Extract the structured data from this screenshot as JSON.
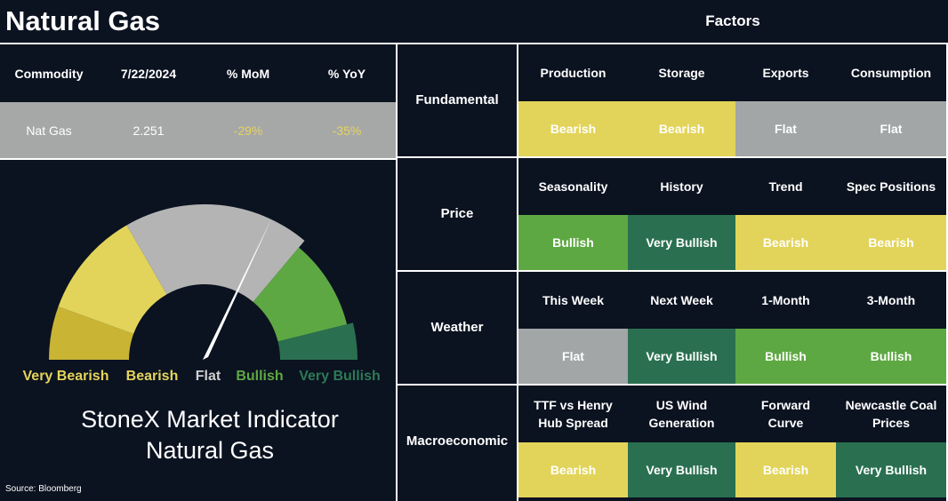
{
  "header": {
    "title": "Natural Gas",
    "factors_title": "Factors"
  },
  "table": {
    "columns": [
      "Commodity",
      "7/22/2024",
      "% MoM",
      "% YoY"
    ],
    "row": [
      "Nat Gas",
      "2.251",
      "-29%",
      "-35%"
    ],
    "row_colors": [
      "#ffffff",
      "#ffffff",
      "#e6d35a",
      "#e6d35a"
    ]
  },
  "gauge": {
    "labels": [
      {
        "text": "Very Bearish",
        "color": "#c9b434",
        "label_color": "#e5d45a"
      },
      {
        "text": "Bearish",
        "color": "#e2d45a",
        "label_color": "#e5d45a"
      },
      {
        "text": "Flat",
        "color": "#b4b4b4",
        "label_color": "#cfcfcf"
      },
      {
        "text": "Bullish",
        "color": "#5ea843",
        "label_color": "#5ea843"
      },
      {
        "text": "Very Bullish",
        "color": "#2a7050",
        "label_color": "#2d7a55"
      }
    ],
    "title_line1": "StoneX Market Indicator",
    "title_line2": "Natural Gas"
  },
  "source": "Source: Bloomberg",
  "sections": [
    {
      "name": "Fundamental",
      "items": [
        {
          "label": "Production",
          "signal": "Bearish",
          "color": "#e2d45a"
        },
        {
          "label": "Storage",
          "signal": "Bearish",
          "color": "#e2d45a"
        },
        {
          "label": "Exports",
          "signal": "Flat",
          "color": "#a2a6a6"
        },
        {
          "label": "Consumption",
          "signal": "Flat",
          "color": "#a2a6a6"
        }
      ]
    },
    {
      "name": "Price",
      "items": [
        {
          "label": "Seasonality",
          "signal": "Bullish",
          "color": "#5ea843"
        },
        {
          "label": "History",
          "signal": "Very Bullish",
          "color": "#2a7050"
        },
        {
          "label": "Trend",
          "signal": "Bearish",
          "color": "#e2d45a"
        },
        {
          "label": "Spec Positions",
          "signal": "Bearish",
          "color": "#e2d45a"
        }
      ]
    },
    {
      "name": "Weather",
      "items": [
        {
          "label": "This Week",
          "signal": "Flat",
          "color": "#a2a6a6"
        },
        {
          "label": "Next Week",
          "signal": "Very Bullish",
          "color": "#2a7050"
        },
        {
          "label": "1-Month",
          "signal": "Bullish",
          "color": "#5ea843"
        },
        {
          "label": "3-Month",
          "signal": "Bullish",
          "color": "#5ea843"
        }
      ]
    },
    {
      "name": "Macroeconomic",
      "items": [
        {
          "label": "TTF vs Henry\nHub Spread",
          "signal": "Bearish",
          "color": "#e2d45a"
        },
        {
          "label": "US Wind\nGeneration",
          "signal": "Very Bullish",
          "color": "#2a7050"
        },
        {
          "label": "Forward\nCurve",
          "signal": "Bearish",
          "color": "#e2d45a"
        },
        {
          "label": "Newcastle Coal\nPrices",
          "signal": "Very Bullish",
          "color": "#2a7050"
        }
      ]
    }
  ]
}
